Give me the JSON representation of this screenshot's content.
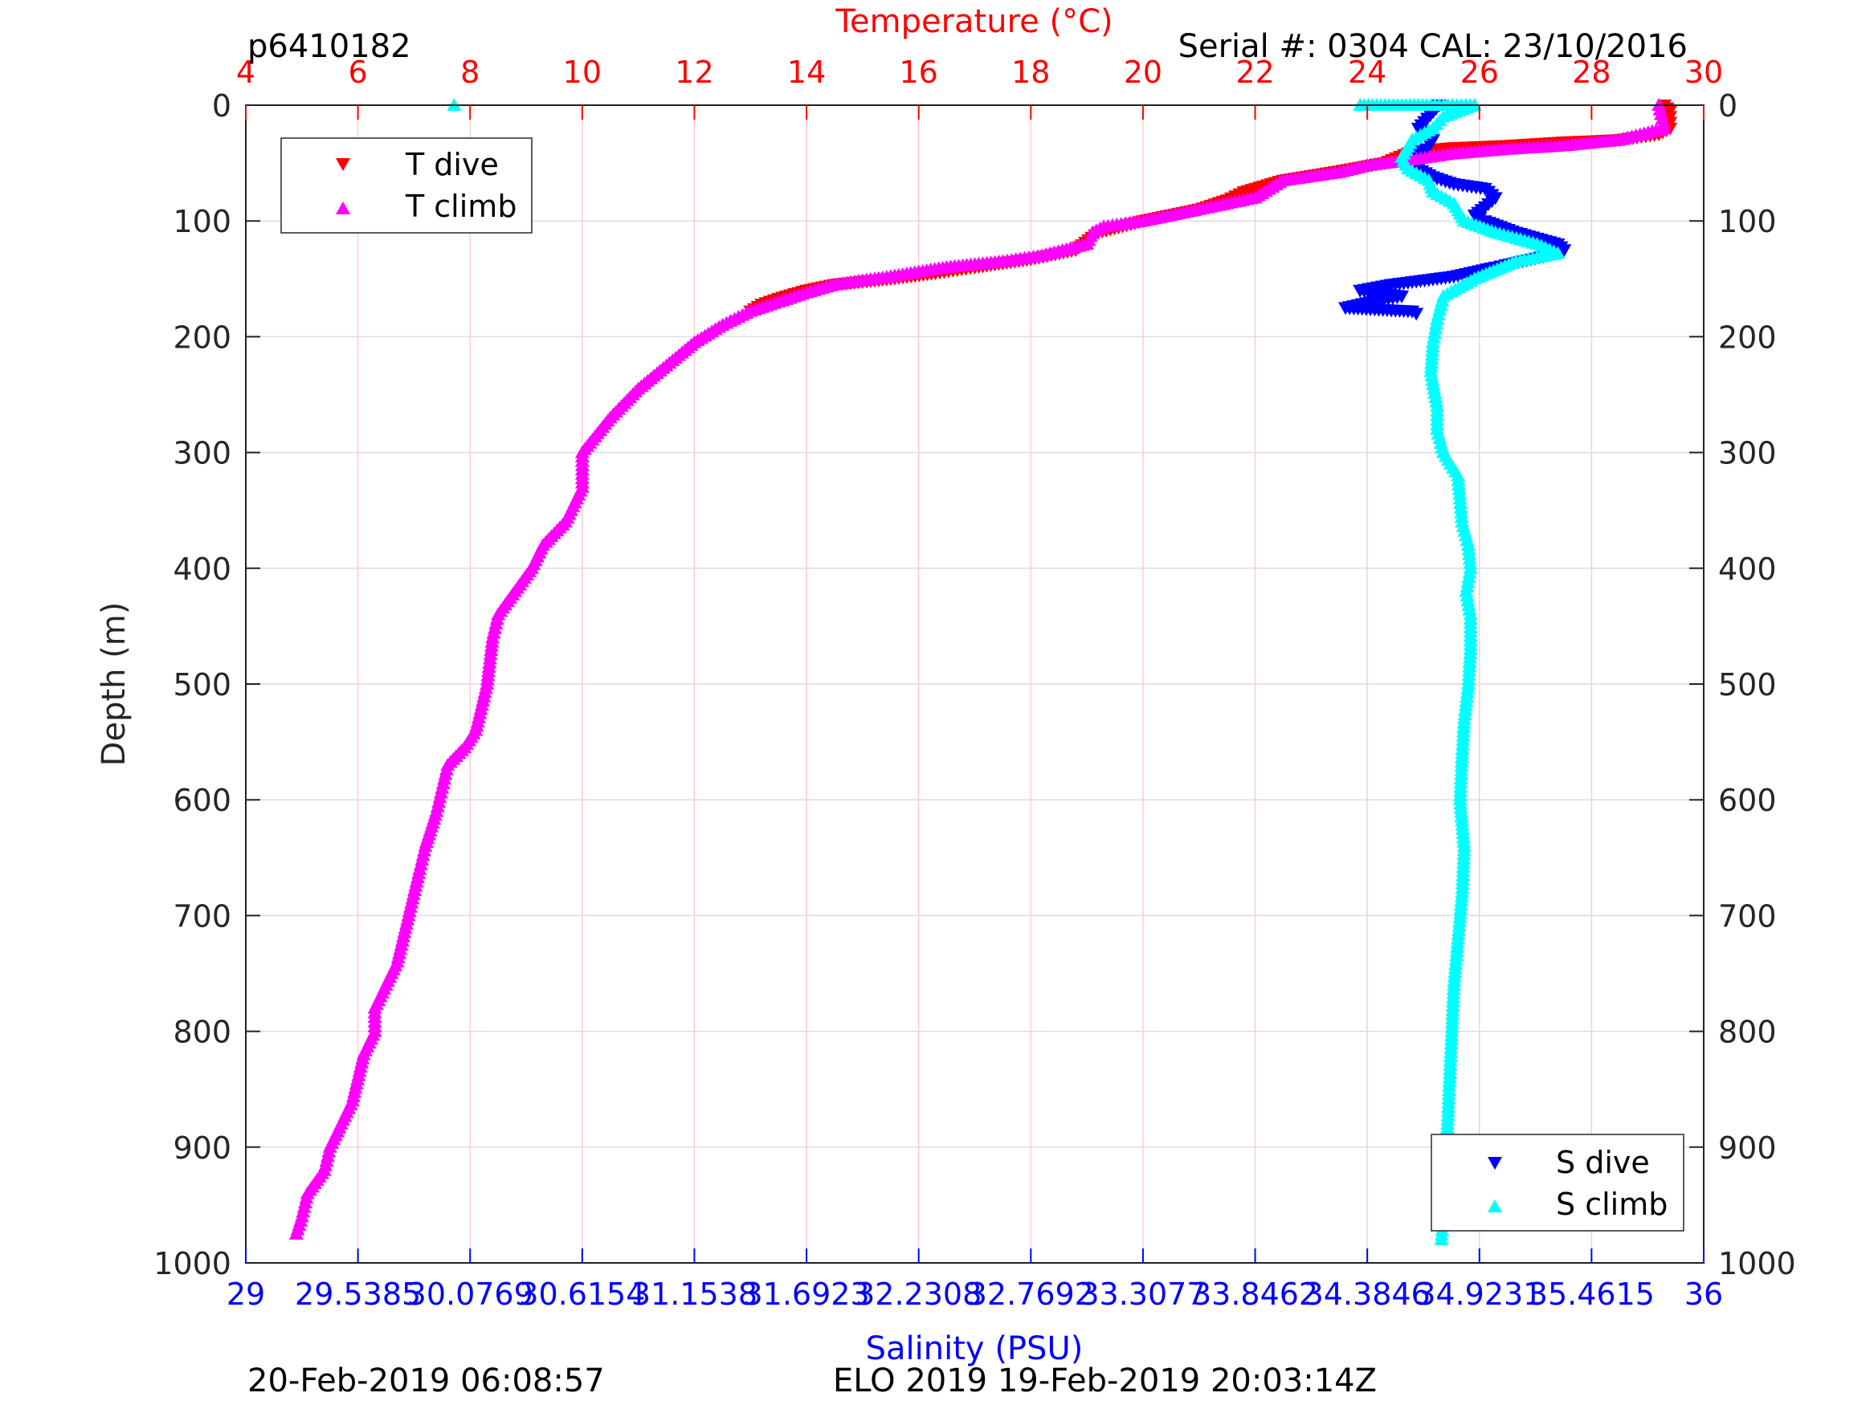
{
  "header": {
    "profile_id": "p6410182",
    "serial_cal": "Serial #: 0304  CAL: 23/10/2016"
  },
  "footer": {
    "processed_time": "20-Feb-2019 06:08:57",
    "mission_info": "ELO 2019 19-Feb-2019 20:03:14Z"
  },
  "colors": {
    "t_dive": "#ff0000",
    "t_climb": "#ff00ff",
    "s_dive": "#0000ff",
    "s_climb": "#00ffff",
    "temp_axis": "#ff0000",
    "sal_axis": "#0000ff"
  },
  "chart_data": {
    "type": "scatter",
    "ylabel": "Depth (m)",
    "ylim": [
      0,
      1000
    ],
    "y_reversed": true,
    "y_ticks": [
      "0",
      "100",
      "200",
      "300",
      "400",
      "500",
      "600",
      "700",
      "800",
      "900",
      "1000"
    ],
    "temperature_axis": {
      "label": "Temperature (°C)",
      "position": "top",
      "range": [
        4,
        30
      ],
      "ticks": [
        "4",
        "6",
        "8",
        "10",
        "12",
        "14",
        "16",
        "18",
        "20",
        "22",
        "24",
        "26",
        "28",
        "30"
      ]
    },
    "salinity_axis": {
      "label": "Salinity (PSU)",
      "position": "bottom",
      "range": [
        29,
        36
      ],
      "ticks": [
        "29",
        "29.5385",
        "30.0769",
        "30.6154",
        "31.1538",
        "31.6923",
        "32.2308",
        "32.7692",
        "33.3077",
        "33.8462",
        "34.3846",
        "34.9231",
        "35.4615",
        "36"
      ]
    },
    "grid": true,
    "legends": [
      {
        "placement": "top-left",
        "entries": [
          "T dive",
          "T climb"
        ]
      },
      {
        "placement": "bottom-right",
        "entries": [
          "S dive",
          "S climb"
        ]
      }
    ],
    "series": [
      {
        "name": "T dive",
        "axis": "temperature",
        "marker": "triangle-down",
        "points": [
          [
            29.3,
            0
          ],
          [
            29.4,
            5
          ],
          [
            29.4,
            15
          ],
          [
            29.4,
            20
          ],
          [
            29.2,
            25
          ],
          [
            28.5,
            30
          ],
          [
            27.5,
            32
          ],
          [
            26.5,
            35
          ],
          [
            25.5,
            37
          ],
          [
            24.8,
            40
          ],
          [
            24.3,
            50
          ],
          [
            23.5,
            57
          ],
          [
            22.5,
            65
          ],
          [
            21.8,
            75
          ],
          [
            21.5,
            82
          ],
          [
            21,
            90
          ],
          [
            20.5,
            95
          ],
          [
            20,
            100
          ],
          [
            19.2,
            110
          ],
          [
            18.8,
            125
          ],
          [
            18,
            133
          ],
          [
            17,
            140
          ],
          [
            16.3,
            145
          ],
          [
            15.5,
            150
          ],
          [
            14.5,
            155
          ],
          [
            14,
            160
          ],
          [
            13.5,
            167
          ],
          [
            13.2,
            172
          ],
          [
            13,
            178
          ]
        ]
      },
      {
        "name": "T climb",
        "axis": "temperature",
        "marker": "triangle-up",
        "points": [
          [
            29.2,
            0
          ],
          [
            29.3,
            20
          ],
          [
            28.5,
            30
          ],
          [
            27.5,
            35
          ],
          [
            26.5,
            38
          ],
          [
            25.5,
            42
          ],
          [
            24.8,
            47
          ],
          [
            24,
            52
          ],
          [
            23.5,
            58
          ],
          [
            22.5,
            65
          ],
          [
            22,
            80
          ],
          [
            21,
            90
          ],
          [
            20.5,
            95
          ],
          [
            20,
            100
          ],
          [
            19.3,
            105
          ],
          [
            19.1,
            110
          ],
          [
            19,
            120
          ],
          [
            18.2,
            130
          ],
          [
            17.5,
            135
          ],
          [
            16.5,
            140
          ],
          [
            15.5,
            148
          ],
          [
            14.5,
            155
          ],
          [
            14,
            162
          ],
          [
            13.5,
            170
          ],
          [
            13,
            178
          ],
          [
            12.5,
            190
          ],
          [
            12,
            205
          ],
          [
            11.5,
            225
          ],
          [
            11,
            245
          ],
          [
            10.5,
            270
          ],
          [
            10,
            300
          ],
          [
            10,
            330
          ],
          [
            9.7,
            360
          ],
          [
            9.3,
            380
          ],
          [
            9.1,
            400
          ],
          [
            8.8,
            420
          ],
          [
            8.5,
            440
          ],
          [
            8.4,
            460
          ],
          [
            8.3,
            500
          ],
          [
            8.1,
            540
          ],
          [
            7.9,
            555
          ],
          [
            7.6,
            570
          ],
          [
            7.5,
            590
          ],
          [
            7.4,
            610
          ],
          [
            7.2,
            640
          ],
          [
            7.1,
            660
          ],
          [
            6.9,
            700
          ],
          [
            6.7,
            740
          ],
          [
            6.3,
            780
          ],
          [
            6.3,
            800
          ],
          [
            6.1,
            820
          ],
          [
            5.9,
            860
          ],
          [
            5.7,
            880
          ],
          [
            5.5,
            900
          ],
          [
            5.4,
            920
          ],
          [
            5.1,
            940
          ],
          [
            5,
            960
          ],
          [
            4.9,
            975
          ]
        ]
      },
      {
        "name": "S dive",
        "axis": "salinity",
        "marker": "triangle-down",
        "points": [
          [
            34.73,
            0
          ],
          [
            34.63,
            20
          ],
          [
            34.68,
            25
          ],
          [
            34.7,
            30
          ],
          [
            34.67,
            38
          ],
          [
            34.6,
            42
          ],
          [
            34.59,
            48
          ],
          [
            34.63,
            55
          ],
          [
            34.7,
            62
          ],
          [
            34.8,
            68
          ],
          [
            34.95,
            72
          ],
          [
            35,
            80
          ],
          [
            34.95,
            88
          ],
          [
            34.9,
            95
          ],
          [
            34.95,
            100
          ],
          [
            35.1,
            110
          ],
          [
            35.3,
            120
          ],
          [
            35.33,
            125
          ],
          [
            35.25,
            130
          ],
          [
            35.05,
            138
          ],
          [
            35,
            140
          ],
          [
            34.8,
            148
          ],
          [
            34.5,
            155
          ],
          [
            34.35,
            160
          ],
          [
            34.55,
            165
          ],
          [
            34.4,
            170
          ],
          [
            34.28,
            175
          ],
          [
            34.6,
            178
          ],
          [
            34.62,
            180
          ]
        ]
      },
      {
        "name": "S climb",
        "axis": "salinity",
        "marker": "triangle-up",
        "points": [
          [
            30.0,
            0
          ],
          [
            34.35,
            0
          ],
          [
            34.55,
            0
          ],
          [
            34.73,
            0
          ],
          [
            34.9,
            0
          ],
          [
            34.75,
            10
          ],
          [
            34.7,
            20
          ],
          [
            34.6,
            30
          ],
          [
            34.55,
            45
          ],
          [
            34.58,
            55
          ],
          [
            34.68,
            65
          ],
          [
            34.7,
            75
          ],
          [
            34.8,
            85
          ],
          [
            34.85,
            100
          ],
          [
            35,
            110
          ],
          [
            35.2,
            120
          ],
          [
            35.3,
            128
          ],
          [
            35.1,
            135
          ],
          [
            34.9,
            150
          ],
          [
            34.75,
            165
          ],
          [
            34.72,
            185
          ],
          [
            34.7,
            205
          ],
          [
            34.69,
            230
          ],
          [
            34.72,
            260
          ],
          [
            34.72,
            280
          ],
          [
            34.75,
            300
          ],
          [
            34.82,
            320
          ],
          [
            34.83,
            340
          ],
          [
            34.84,
            360
          ],
          [
            34.87,
            380
          ],
          [
            34.88,
            400
          ],
          [
            34.86,
            420
          ],
          [
            34.88,
            440
          ],
          [
            34.88,
            470
          ],
          [
            34.87,
            500
          ],
          [
            34.85,
            530
          ],
          [
            34.84,
            560
          ],
          [
            34.83,
            600
          ],
          [
            34.85,
            640
          ],
          [
            34.84,
            680
          ],
          [
            34.82,
            720
          ],
          [
            34.8,
            760
          ],
          [
            34.79,
            800
          ],
          [
            34.78,
            840
          ],
          [
            34.77,
            880
          ],
          [
            34.76,
            920
          ],
          [
            34.75,
            960
          ],
          [
            34.74,
            980
          ]
        ]
      }
    ]
  }
}
